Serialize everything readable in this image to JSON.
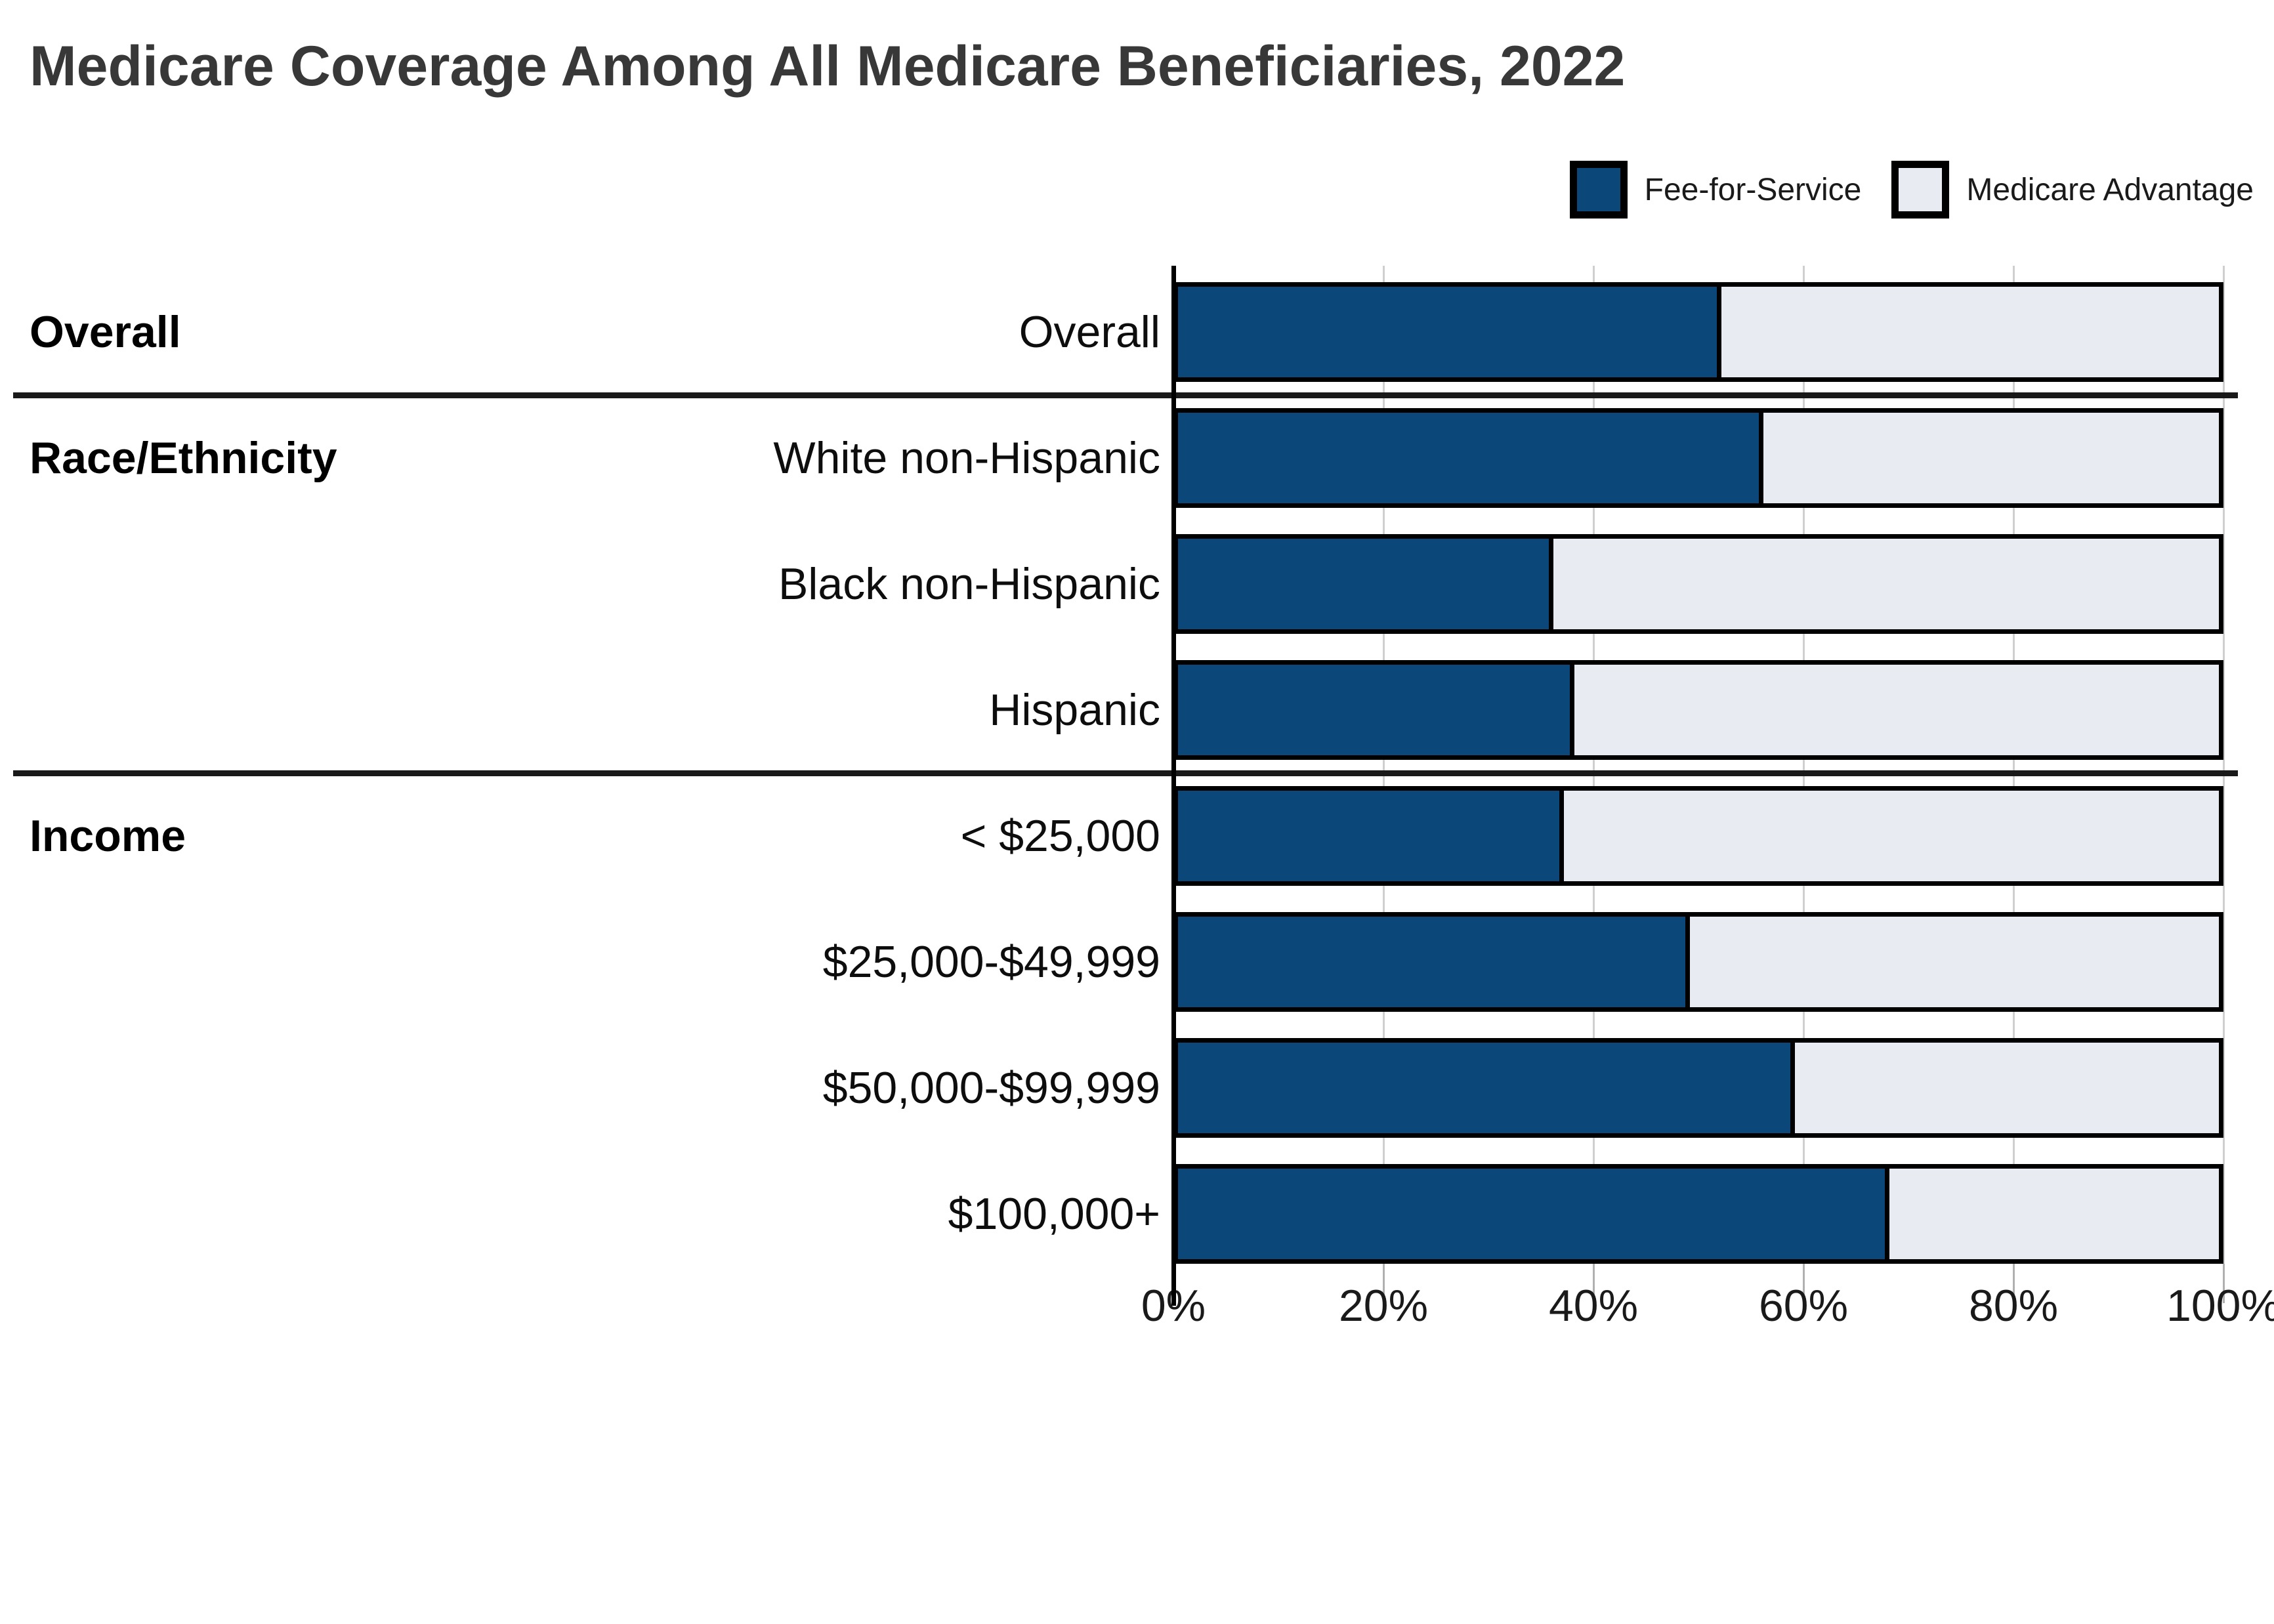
{
  "title": "Medicare Coverage Among All Medicare Beneficiaries, 2022",
  "legend": [
    {
      "label": "Fee-for-Service",
      "color": "#0b4778"
    },
    {
      "label": "Medicare Advantage",
      "color": "#e8ebf2"
    }
  ],
  "colors": {
    "fee_for_service": "#0b4778",
    "medicare_advantage": "#e8ebf2",
    "bar_border": "#000000",
    "title_text": "#383838",
    "gridline": "#cfcfcf",
    "tick": "#b0b0b0",
    "divider": "#1a1a1a"
  },
  "chart_data": {
    "type": "bar",
    "orientation": "horizontal",
    "stacked": true,
    "unit": "percent",
    "title": "Medicare Coverage Among All Medicare Beneficiaries, 2022",
    "xlabel": "",
    "ylabel": "",
    "x_axis": {
      "range": [
        0,
        100
      ],
      "ticks": [
        "0%",
        "20%",
        "40%",
        "60%",
        "80%",
        "100%"
      ],
      "gridlines": true
    },
    "legend_position": "top-right",
    "categories": [
      "Overall",
      "White non-Hispanic",
      "Black non-Hispanic",
      "Hispanic",
      "< $25,000",
      "$25,000-$49,999",
      "$50,000-$99,999",
      "$100,000+"
    ],
    "series": [
      {
        "name": "Fee-for-Service",
        "values": [
          52,
          56,
          36,
          38,
          37,
          49,
          59,
          68
        ]
      },
      {
        "name": "Medicare Advantage",
        "values": [
          48,
          44,
          64,
          62,
          63,
          51,
          41,
          32
        ]
      }
    ],
    "groups": [
      {
        "label": "Overall",
        "rows": [
          {
            "label": "Overall",
            "fee_for_service": 52,
            "medicare_advantage": 48
          }
        ]
      },
      {
        "label": "Race/Ethnicity",
        "rows": [
          {
            "label": "White non-Hispanic",
            "fee_for_service": 56,
            "medicare_advantage": 44
          },
          {
            "label": "Black non-Hispanic",
            "fee_for_service": 36,
            "medicare_advantage": 64
          },
          {
            "label": "Hispanic",
            "fee_for_service": 38,
            "medicare_advantage": 62
          }
        ]
      },
      {
        "label": "Income",
        "rows": [
          {
            "label": "< $25,000",
            "fee_for_service": 37,
            "medicare_advantage": 63
          },
          {
            "label": "$25,000-$49,999",
            "fee_for_service": 49,
            "medicare_advantage": 51
          },
          {
            "label": "$50,000-$99,999",
            "fee_for_service": 59,
            "medicare_advantage": 41
          },
          {
            "label": "$100,000+",
            "fee_for_service": 68,
            "medicare_advantage": 32
          }
        ]
      }
    ]
  }
}
